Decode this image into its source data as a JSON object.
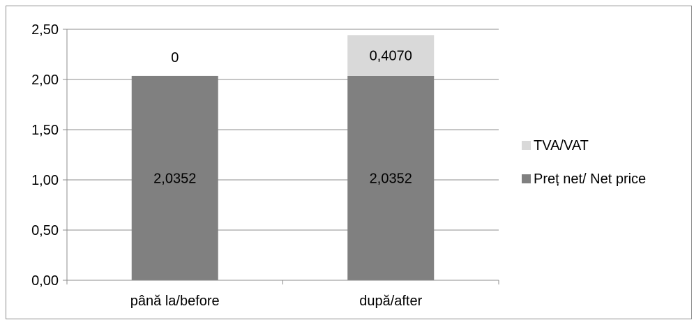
{
  "chart_data": {
    "type": "bar",
    "stacked": true,
    "categories": [
      "până la/before",
      "după/after"
    ],
    "series": [
      {
        "name": "Preț net/ Net price",
        "values": [
          2.0352,
          2.0352
        ],
        "labels": [
          "2,0352",
          "2,0352"
        ],
        "color": "#808080"
      },
      {
        "name": "TVA/VAT",
        "values": [
          0,
          0.407
        ],
        "labels": [
          "0",
          "0,4070"
        ],
        "color": "#d9d9d9"
      }
    ],
    "yticks": [
      "0,00",
      "0,50",
      "1,00",
      "1,50",
      "2,00",
      "2,50"
    ],
    "ylim": [
      0,
      2.5
    ],
    "grid": true,
    "legend": "right",
    "title": "",
    "xlabel": "",
    "ylabel": ""
  }
}
